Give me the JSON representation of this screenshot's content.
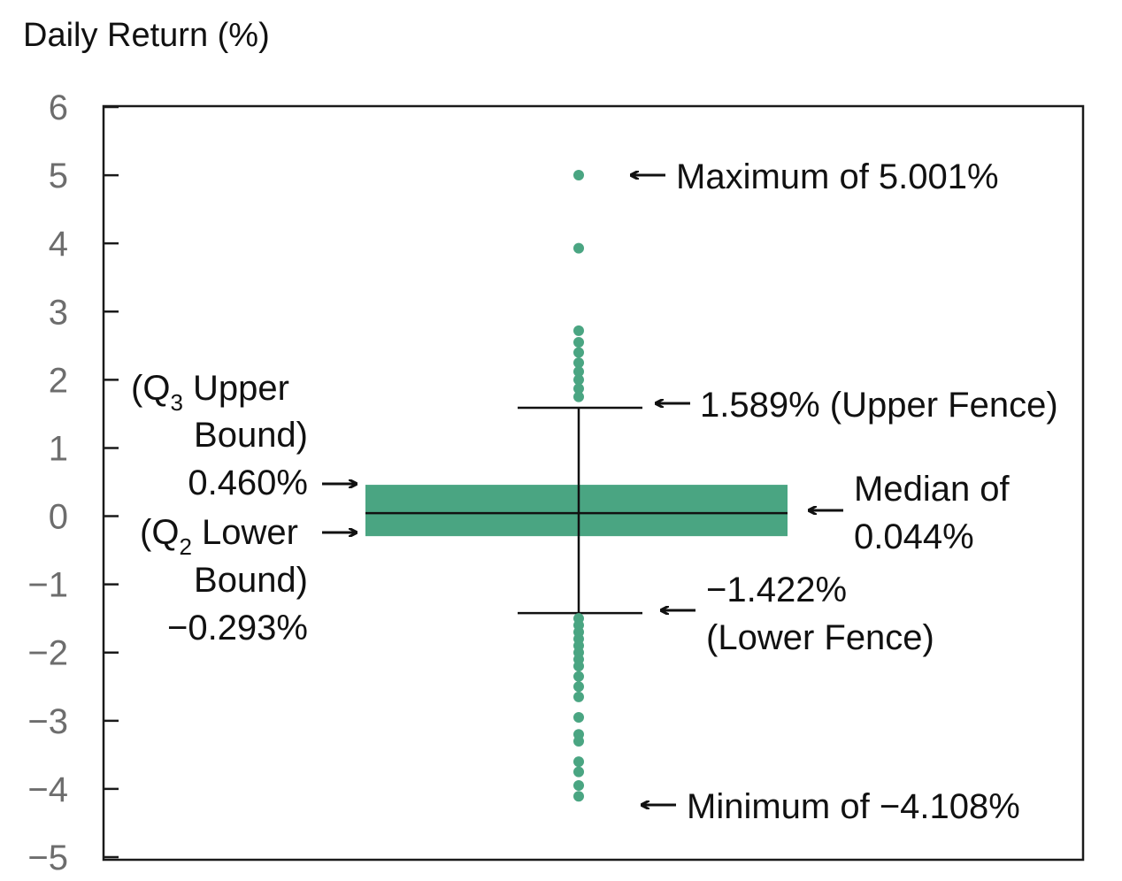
{
  "chart_data": {
    "type": "box",
    "ylabel": "Daily Return (%)",
    "ylim": [
      -5,
      6
    ],
    "yticks": [
      6,
      5,
      4,
      3,
      2,
      1,
      0,
      -1,
      -2,
      -3,
      -4,
      -5
    ],
    "ytick_labels": [
      "6",
      "5",
      "4",
      "3",
      "2",
      "1",
      "0",
      "−1",
      "−2",
      "−3",
      "−4",
      "−5"
    ],
    "box": {
      "q3": 0.46,
      "q1": -0.293,
      "median": 0.044,
      "upper_fence": 1.589,
      "lower_fence": -1.422,
      "maximum": 5.001,
      "minimum": -4.108
    },
    "outliers": [
      5.001,
      3.93,
      2.72,
      2.55,
      2.4,
      2.25,
      2.12,
      2.0,
      1.87,
      1.75,
      -1.5,
      -1.6,
      -1.7,
      -1.8,
      -1.9,
      -2.0,
      -2.1,
      -2.2,
      -2.35,
      -2.5,
      -2.65,
      -2.95,
      -3.2,
      -3.3,
      -3.6,
      -3.75,
      -3.95,
      -4.108
    ],
    "colors": {
      "box": "#4aa582",
      "points": "#4aa582",
      "axis": "#1a1a1a",
      "tick_text": "#6d6d6d"
    },
    "annotations": {
      "maximum": "Maximum of 5.001%",
      "upper_fence": "1.589% (Upper Fence)",
      "median_line1": "Median of",
      "median_line2": "0.044%",
      "lower_fence_line1": "−1.422%",
      "lower_fence_line2": "(Lower Fence)",
      "minimum": "Minimum of −4.108%",
      "q3_open": "(Q",
      "q3_sub": "3",
      "q3_rest": " Upper",
      "q3_line2": "Bound)",
      "q3_value": "0.460%",
      "q2_open": "(Q",
      "q2_sub": "2",
      "q2_rest": " Lower",
      "q2_line2": "Bound)",
      "q2_value": "−0.293%"
    }
  }
}
